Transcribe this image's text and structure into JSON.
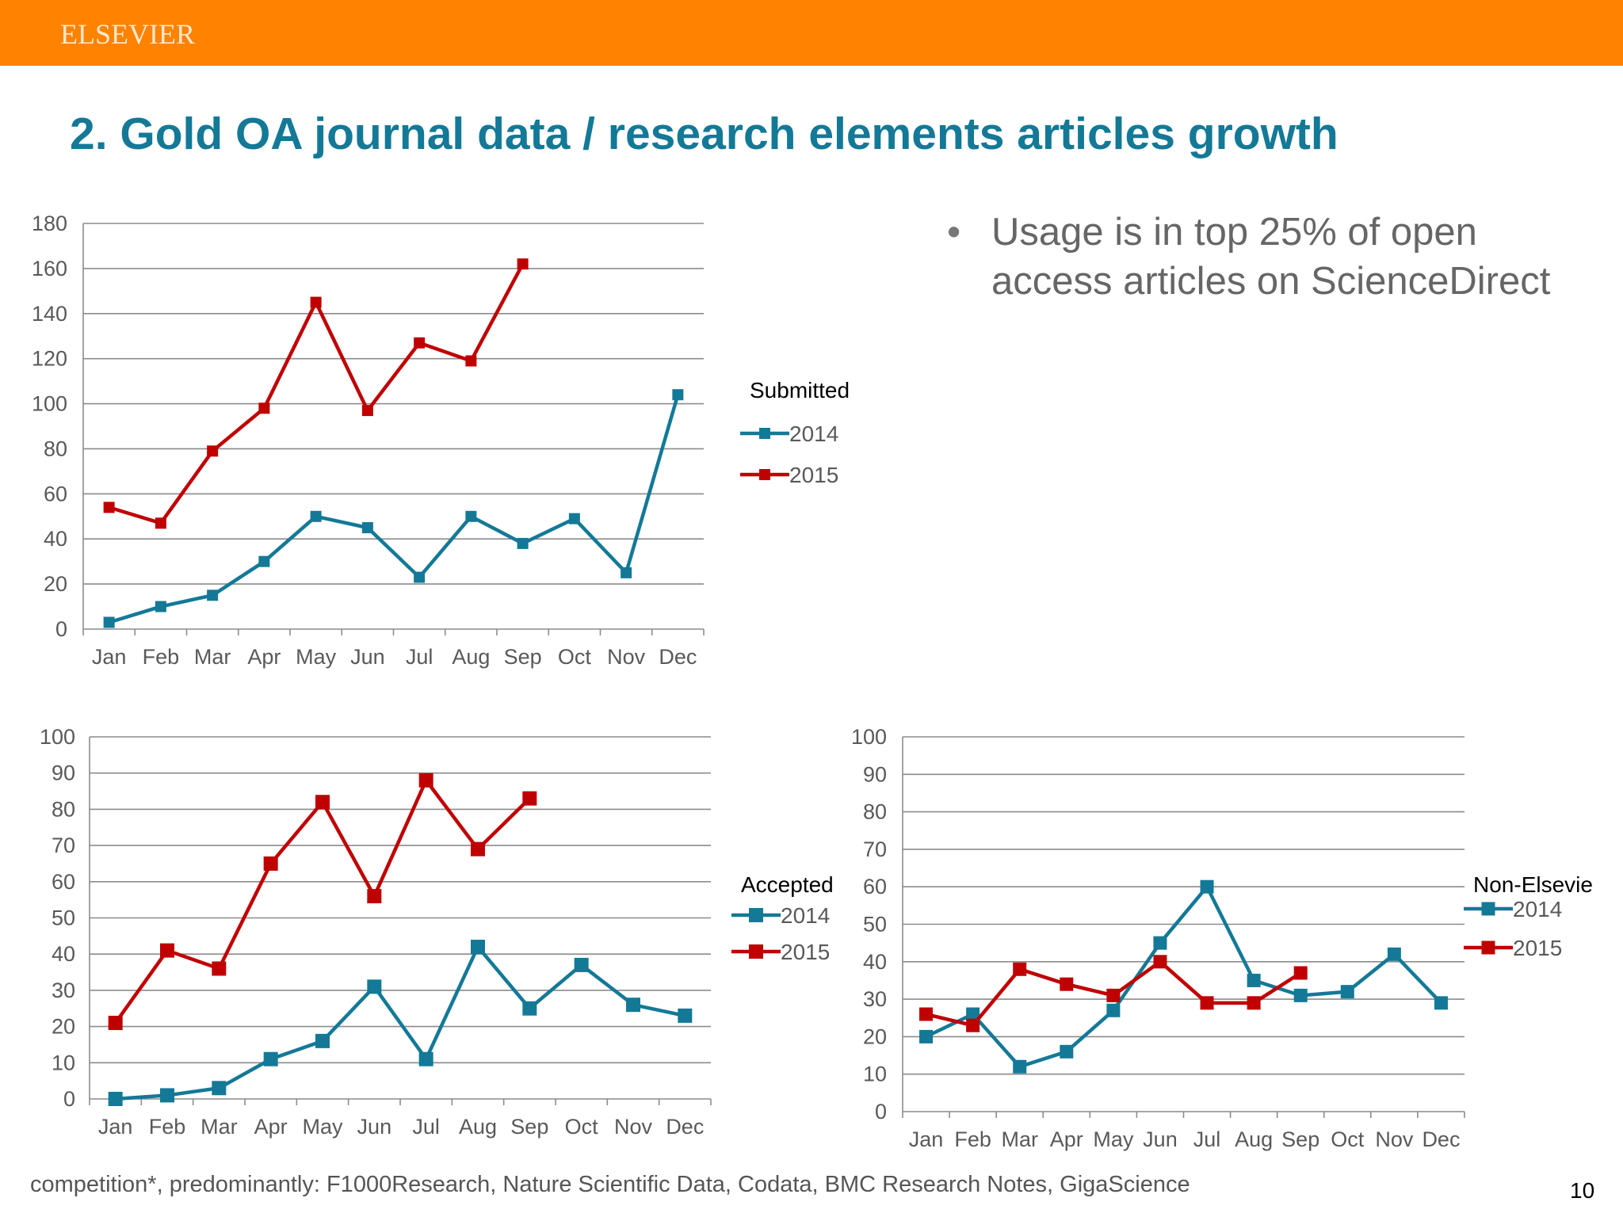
{
  "header": {
    "brand": "ELSEVIER"
  },
  "title": "2. Gold OA journal data / research elements articles growth",
  "bullet": {
    "symbol": "•",
    "text": "Usage is in top 25% of open access articles on ScienceDirect"
  },
  "footnote": "competition*, predominantly: F1000Research, Nature Scientific Data, Codata, BMC Research Notes, GigaScience",
  "page_number": "10",
  "colors": {
    "header_bar": "#ff8200",
    "title": "#137997",
    "series_2014": "#137997",
    "series_2015": "#c00000"
  },
  "chart_data": [
    {
      "type": "line",
      "legend_title": "Submitted",
      "categories": [
        "Jan",
        "Feb",
        "Mar",
        "Apr",
        "May",
        "Jun",
        "Jul",
        "Aug",
        "Sep",
        "Oct",
        "Nov",
        "Dec"
      ],
      "yticks": [
        "0",
        "20",
        "40",
        "60",
        "80",
        "100",
        "120",
        "140",
        "160",
        "180"
      ],
      "ylim": [
        0,
        180
      ],
      "grid": true,
      "legend_position": "right",
      "series": [
        {
          "name": "2014",
          "color": "#137997",
          "values": [
            3,
            10,
            15,
            30,
            50,
            45,
            23,
            50,
            38,
            49,
            25,
            104
          ]
        },
        {
          "name": "2015",
          "color": "#c00000",
          "values": [
            54,
            47,
            79,
            98,
            145,
            97,
            127,
            119,
            162,
            null,
            null,
            null
          ]
        }
      ]
    },
    {
      "type": "line",
      "legend_title": "Accepted",
      "categories": [
        "Jan",
        "Feb",
        "Mar",
        "Apr",
        "May",
        "Jun",
        "Jul",
        "Aug",
        "Sep",
        "Oct",
        "Nov",
        "Dec"
      ],
      "yticks": [
        "0",
        "10",
        "20",
        "30",
        "40",
        "50",
        "60",
        "70",
        "80",
        "90",
        "100"
      ],
      "ylim": [
        0,
        100
      ],
      "grid": true,
      "legend_position": "right",
      "series": [
        {
          "name": "2014",
          "color": "#137997",
          "values": [
            0,
            1,
            3,
            11,
            16,
            31,
            11,
            42,
            25,
            37,
            26,
            23
          ]
        },
        {
          "name": "2015",
          "color": "#c00000",
          "values": [
            21,
            41,
            36,
            65,
            82,
            56,
            88,
            69,
            83,
            null,
            null,
            null
          ]
        }
      ]
    },
    {
      "type": "line",
      "legend_title": "Non-Elsevie",
      "categories": [
        "Jan",
        "Feb",
        "Mar",
        "Apr",
        "May",
        "Jun",
        "Jul",
        "Aug",
        "Sep",
        "Oct",
        "Nov",
        "Dec"
      ],
      "yticks": [
        "0",
        "10",
        "20",
        "30",
        "40",
        "50",
        "60",
        "70",
        "80",
        "90",
        "100"
      ],
      "ylim": [
        0,
        100
      ],
      "grid": true,
      "legend_position": "right",
      "series": [
        {
          "name": "2014",
          "color": "#137997",
          "values": [
            20,
            26,
            12,
            16,
            27,
            45,
            60,
            35,
            31,
            32,
            42,
            29
          ]
        },
        {
          "name": "2015",
          "color": "#c00000",
          "values": [
            26,
            23,
            38,
            34,
            31,
            40,
            29,
            29,
            37,
            null,
            null,
            null
          ]
        }
      ]
    }
  ]
}
